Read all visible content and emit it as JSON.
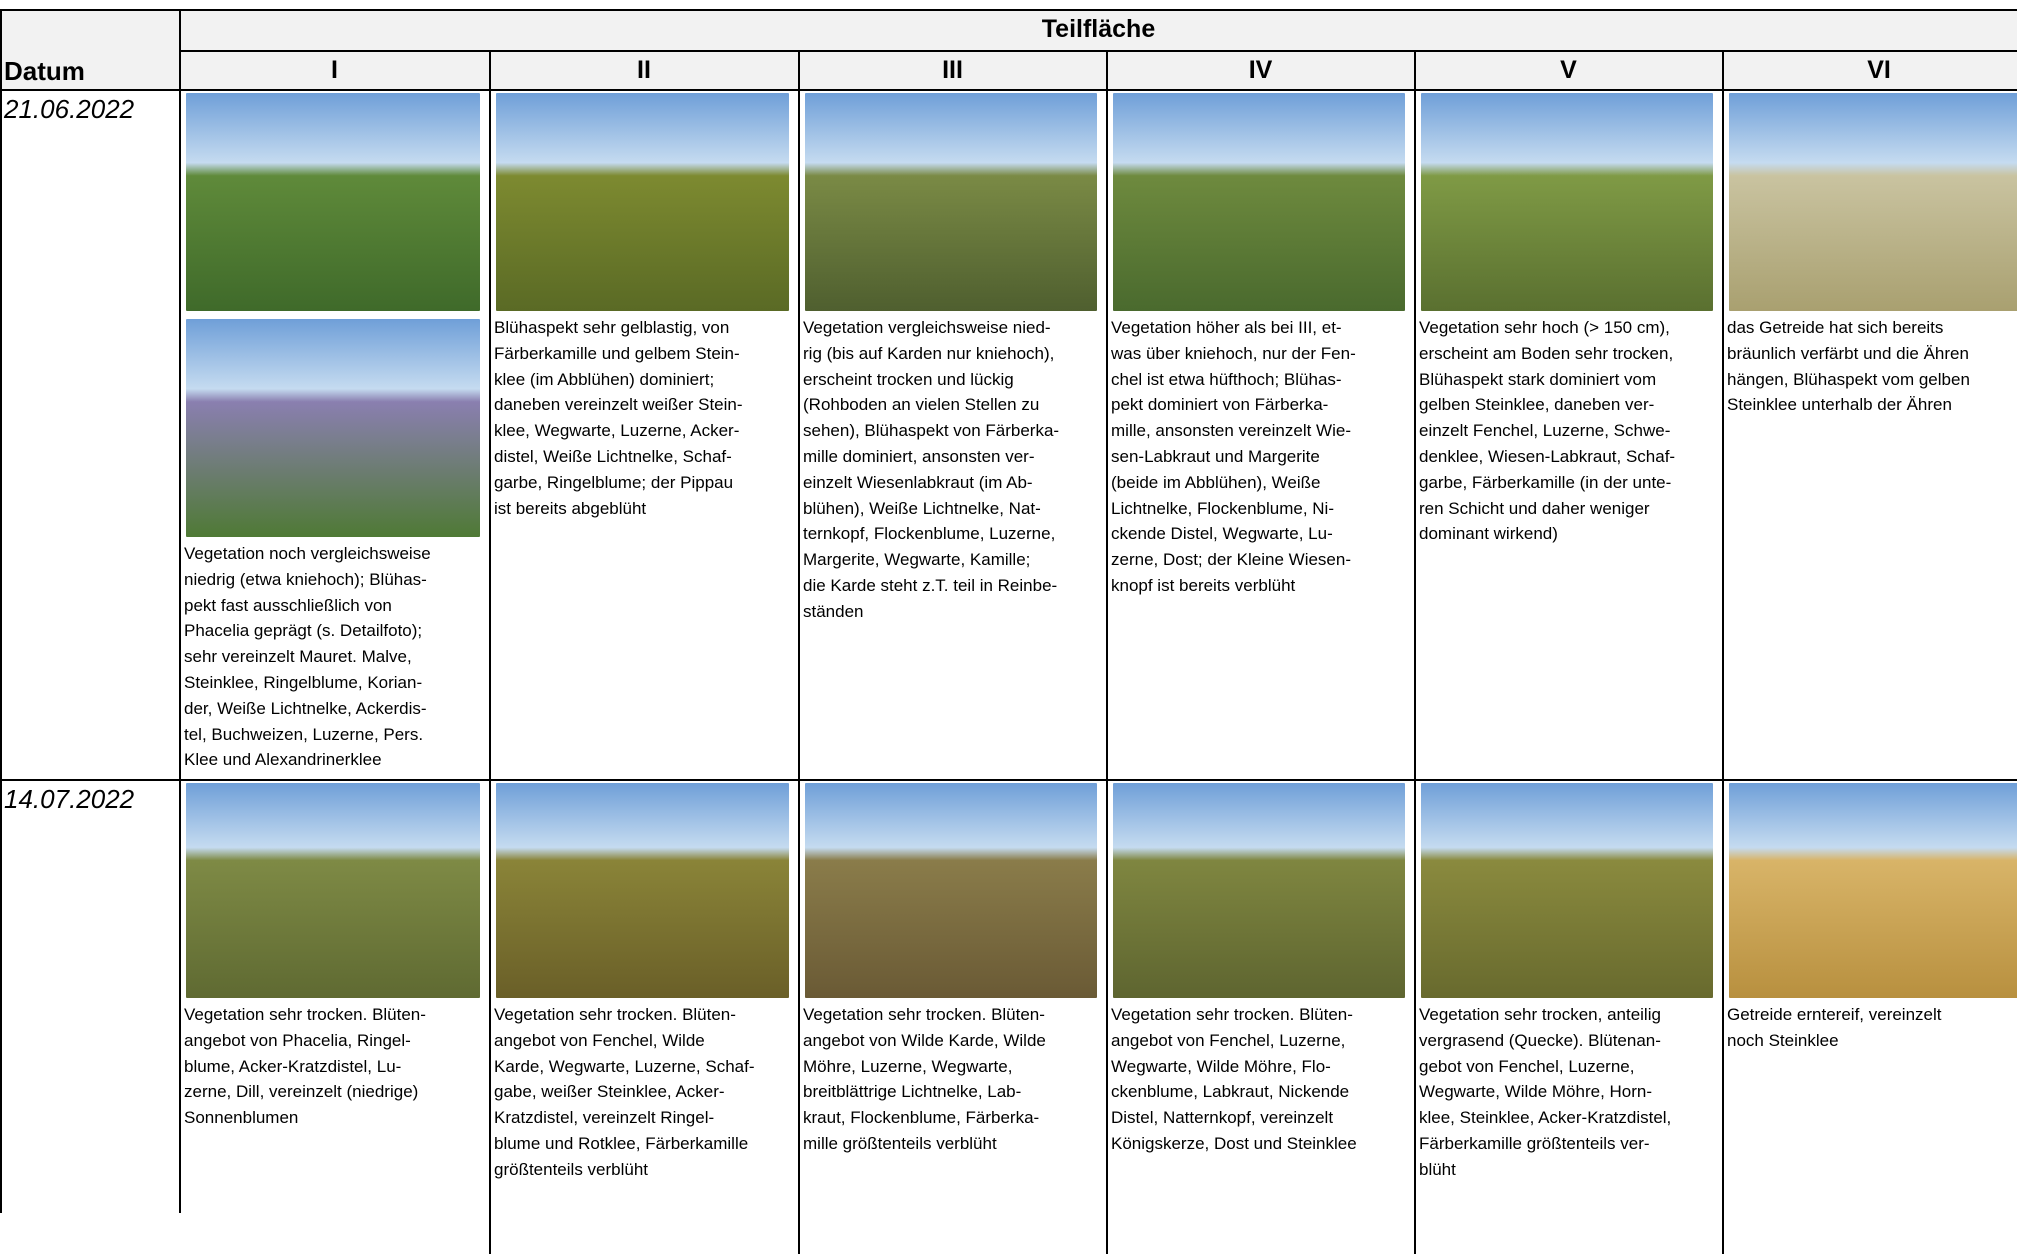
{
  "header": {
    "date_label": "Datum",
    "group": "Teilfläche",
    "columns": [
      "I",
      "II",
      "III",
      "IV",
      "V",
      "VI"
    ]
  },
  "rows": [
    {
      "date": "21.06.2022",
      "cells": [
        [
          "Vegetation noch vergleichsweise",
          "niedrig (etwa kniehoch); Blühas-",
          "pekt fast ausschließlich von",
          "Phacelia geprägt (s. Detailfoto);",
          "sehr vereinzelt Mauret. Malve,",
          "Steinklee, Ringelblume, Korian-",
          "der, Weiße Lichtnelke, Ackerdis-",
          "tel, Buchweizen, Luzerne, Pers.",
          "Klee und Alexandrinerklee"
        ],
        [
          "Blühaspekt sehr gelblastig, von",
          "Färberkamille und gelbem Stein-",
          "klee (im Abblühen) dominiert;",
          "daneben vereinzelt weißer Stein-",
          "klee, Wegwarte, Luzerne, Acker-",
          "distel, Weiße Lichtnelke, Schaf-",
          "garbe, Ringelblume; der Pippau",
          "ist bereits abgeblüht"
        ],
        [
          "Vegetation vergleichsweise nied-",
          "rig (bis auf Karden nur kniehoch),",
          "erscheint trocken und lückig",
          "(Rohboden an vielen Stellen zu",
          "sehen), Blühaspekt von Färberka-",
          "mille dominiert, ansonsten ver-",
          "einzelt Wiesenlabkraut (im Ab-",
          "blühen), Weiße Lichtnelke, Nat-",
          "ternkopf, Flockenblume, Luzerne,",
          "Margerite, Wegwarte, Kamille;",
          "die Karde steht z.T. teil in Reinbe-",
          "ständen"
        ],
        [
          "Vegetation höher als bei III, et-",
          "was über kniehoch, nur der Fen-",
          "chel ist etwa hüfthoch; Blühas-",
          "pekt dominiert von Färberka-",
          "mille, ansonsten vereinzelt Wie-",
          "sen-Labkraut und Margerite",
          "(beide im Abblühen), Weiße",
          "Lichtnelke, Flockenblume, Ni-",
          "ckende Distel, Wegwarte, Lu-",
          "zerne, Dost; der Kleine Wiesen-",
          "knopf ist bereits verblüht"
        ],
        [
          "Vegetation sehr hoch (> 150 cm),",
          "erscheint am Boden sehr trocken,",
          "Blühaspekt stark dominiert vom",
          "gelben Steinklee, daneben ver-",
          "einzelt Fenchel, Luzerne, Schwe-",
          "denklee, Wiesen-Labkraut, Schaf-",
          "garbe, Färberkamille (in der unte-",
          "ren Schicht und daher weniger",
          "dominant wirkend)"
        ],
        [
          "das Getreide hat sich bereits",
          "bräunlich verfärbt und die Ähren",
          "hängen, Blühaspekt vom gelben",
          "Steinklee unterhalb der Ähren"
        ]
      ]
    },
    {
      "date": "14.07.2022",
      "cells": [
        [
          "Vegetation sehr trocken. Blüten-",
          "angebot von Phacelia, Ringel-",
          "blume, Acker-Kratzdistel, Lu-",
          "zerne, Dill, vereinzelt (niedrige)",
          "Sonnenblumen"
        ],
        [
          "Vegetation sehr trocken. Blüten-",
          "angebot von Fenchel, Wilde",
          "Karde, Wegwarte, Luzerne, Schaf-",
          "gabe, weißer Steinklee, Acker-",
          "Kratzdistel, vereinzelt Ringel-",
          "blume und Rotklee, Färberkamille",
          "größtenteils verblüht"
        ],
        [
          "Vegetation sehr trocken. Blüten-",
          "angebot von Wilde Karde, Wilde",
          "Möhre, Luzerne, Wegwarte,",
          "breitblättrige Lichtnelke, Lab-",
          "kraut, Flockenblume, Färberka-",
          "mille größtenteils verblüht"
        ],
        [
          "Vegetation sehr trocken. Blüten-",
          "angebot von Fenchel, Luzerne,",
          "Wegwarte, Wilde Möhre, Flo-",
          "ckenblume, Labkraut, Nickende",
          "Distel, Natternkopf, vereinzelt",
          "Königskerze, Dost und Steinklee"
        ],
        [
          "Vegetation sehr trocken, anteilig",
          "vergrasend (Quecke). Blütenan-",
          "gebot von Fenchel, Luzerne,",
          "Wegwarte, Wilde Möhre, Horn-",
          "klee, Steinklee, Acker-Kratzdistel,",
          "Färberkamille größtenteils ver-",
          "blüht"
        ],
        [
          "Getreide erntereif, vereinzelt",
          "noch Steinklee"
        ]
      ]
    }
  ]
}
